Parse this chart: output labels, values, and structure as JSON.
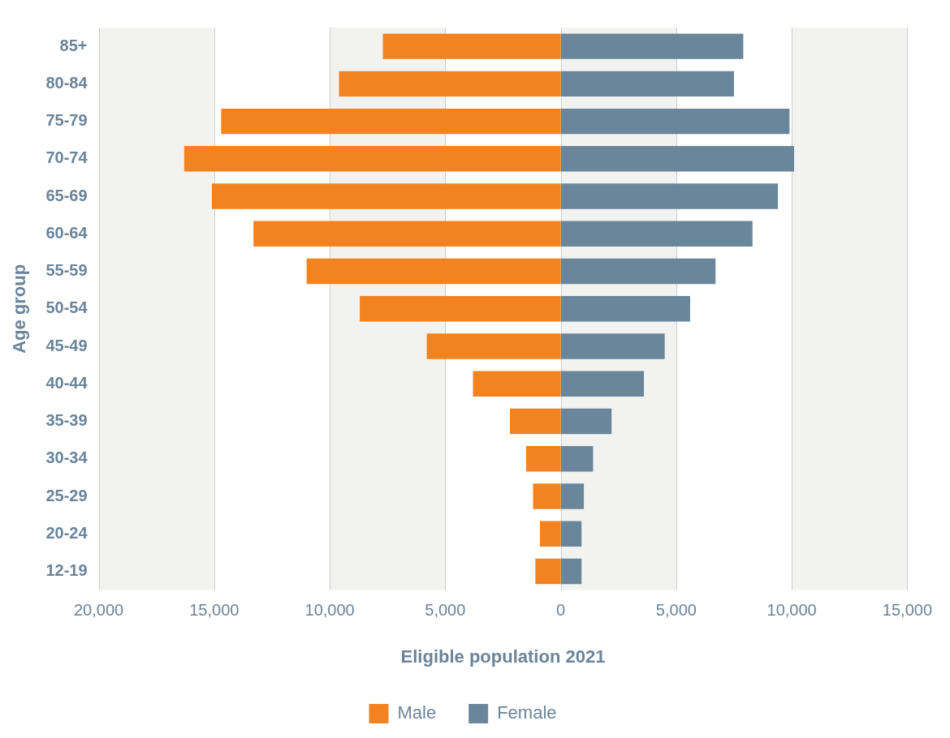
{
  "chart_data": {
    "type": "bar",
    "orientation": "horizontal",
    "stacked": true,
    "xlabel": "Eligible population 2021",
    "ylabel": "Age group",
    "categories": [
      "85+",
      "80-84",
      "75-79",
      "70-74",
      "65-69",
      "60-64",
      "55-59",
      "50-54",
      "45-49",
      "40-44",
      "35-39",
      "30-34",
      "25-29",
      "20-24",
      "12-19"
    ],
    "series": [
      {
        "name": "Male",
        "color": "#f38320",
        "values": [
          -7700,
          -9600,
          -14700,
          -16300,
          -15100,
          -13300,
          -11000,
          -8700,
          -5800,
          -3800,
          -2200,
          -1500,
          -1200,
          -900,
          -1100
        ]
      },
      {
        "name": "Female",
        "color": "#6a869b",
        "values": [
          7900,
          7500,
          9900,
          10100,
          9400,
          8300,
          6700,
          5600,
          4500,
          3600,
          2200,
          1400,
          1000,
          900,
          900
        ]
      }
    ],
    "xlim": [
      -20000,
      15000
    ],
    "xticks": [
      {
        "value": -20000,
        "label": "20,000"
      },
      {
        "value": -15000,
        "label": "15,000"
      },
      {
        "value": -10000,
        "label": "10,000"
      },
      {
        "value": -5000,
        "label": "5,000"
      },
      0,
      {
        "value": 5000,
        "label": "5,000"
      },
      {
        "value": 10000,
        "label": "10,000"
      },
      {
        "value": 15000,
        "label": "15,000"
      }
    ],
    "bands": [
      {
        "axis": "x",
        "from": -20000,
        "to": -15000,
        "color": "#f2f3f0"
      },
      {
        "axis": "x",
        "from": -10000,
        "to": -5000,
        "color": "#f2f3f0"
      },
      {
        "axis": "x",
        "from": 0,
        "to": 5000,
        "color": "#f2f3f0"
      },
      {
        "axis": "x",
        "from": 10000,
        "to": 15000,
        "color": "#f2f3f0"
      }
    ],
    "grid": "x",
    "legend": "bottom"
  }
}
